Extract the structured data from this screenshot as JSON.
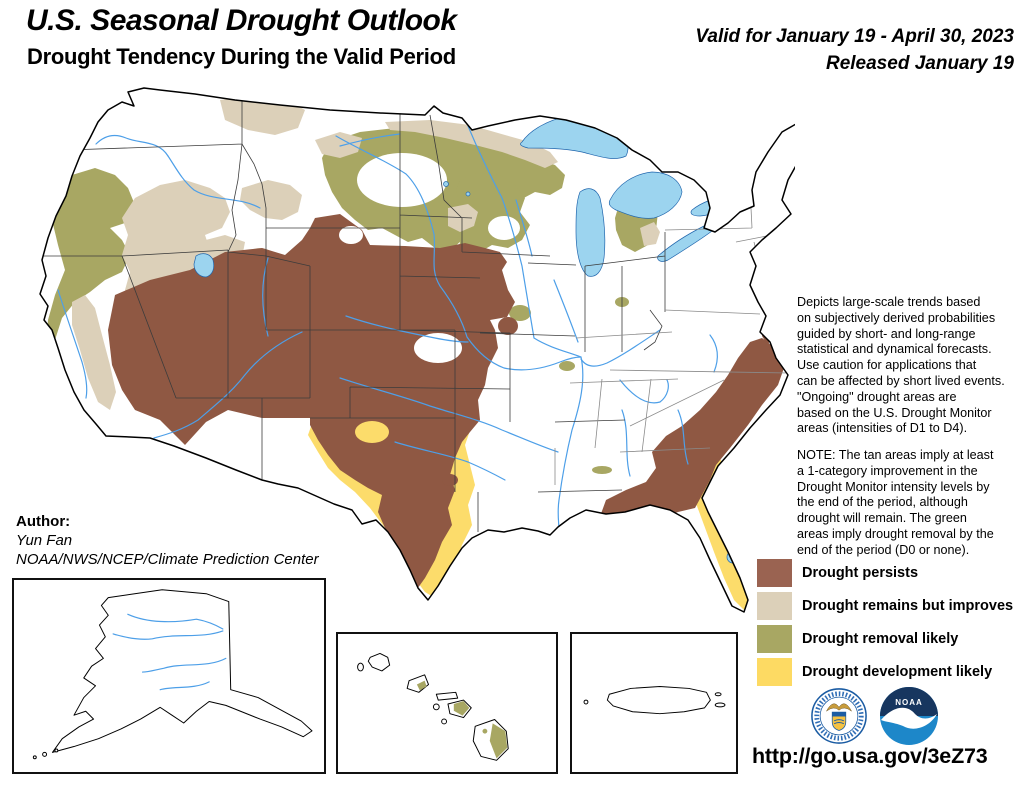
{
  "header": {
    "title": "U.S. Seasonal Drought Outlook",
    "subtitle": "Drought Tendency During the Valid Period",
    "valid_line1": "Valid for January 19 - April 30, 2023",
    "valid_line2": "Released January 19"
  },
  "author": {
    "label": "Author:",
    "name": "Yun Fan",
    "org": "NOAA/NWS/NCEP/Climate Prediction Center"
  },
  "description": "Depicts large-scale trends based\non subjectively derived probabilities\nguided by short- and long-range\nstatistical and dynamical forecasts.\nUse caution for applications that\ncan be affected by short lived events.\n\"Ongoing\" drought areas are\nbased on the U.S. Drought Monitor\nareas (intensities of D1 to D4).",
  "note": "NOTE: The tan areas imply at least\na 1-category improvement in the\nDrought Monitor intensity levels by\nthe end of the period, although\ndrought will remain. The green\nareas imply drought removal by the\nend of the period (D0 or none).",
  "legend": {
    "items": [
      {
        "id": "persists",
        "label": "Drought persists",
        "color": "#9A6351"
      },
      {
        "id": "improves",
        "label": "Drought remains but improves",
        "color": "#DCD0B9"
      },
      {
        "id": "removal",
        "label": "Drought removal likely",
        "color": "#A8A763"
      },
      {
        "id": "development",
        "label": "Drought development likely",
        "color": "#FDDA63"
      }
    ]
  },
  "map": {
    "colors": {
      "persists": "#8F5843",
      "improves": "#DCD0B9",
      "removal": "#A8A763",
      "development": "#FCDC6B",
      "water": "#9CD4EF",
      "river": "#4D9FE8"
    }
  },
  "logos": {
    "noaa_text": "NOAA"
  },
  "link": {
    "url": "http://go.usa.gov/3eZ73"
  }
}
